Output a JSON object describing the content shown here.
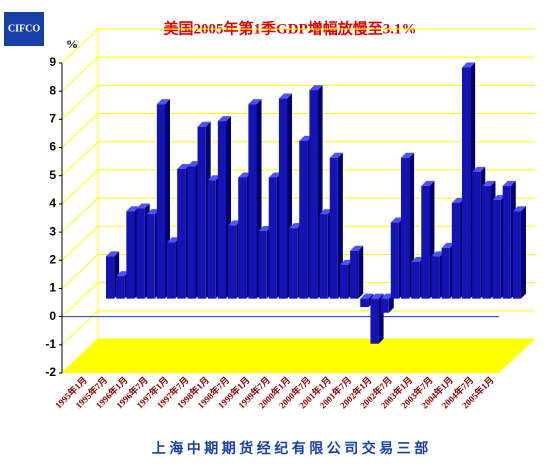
{
  "logo": "CIFCO",
  "footer": "上 海 中 期 期 货 经 纪 有 限 公 司 交 易 三 部",
  "chart_data": {
    "type": "bar3d",
    "title": "美国2005年第1季GDP增幅放慢至3.1%",
    "y_label": "%",
    "categories": [
      "1995年1月",
      null,
      "1995年7月",
      null,
      "1996年1月",
      null,
      "1996年7月",
      null,
      "1997年1月",
      null,
      "1997年7月",
      null,
      "1998年1月",
      null,
      "1998年7月",
      null,
      "1999年1月",
      null,
      "1999年7月",
      null,
      "2000年1月",
      null,
      "2000年7月",
      null,
      "2001年1月",
      null,
      "2001年7月",
      null,
      "2002年1月",
      null,
      "2002年7月",
      null,
      "2003年1月",
      null,
      "2003年7月",
      null,
      "2004年1月",
      null,
      "2004年7月",
      null,
      "2005年1月"
    ],
    "values": [
      1.5,
      0.8,
      3.1,
      3.2,
      3.0,
      6.9,
      2.0,
      4.6,
      4.7,
      6.1,
      4.2,
      6.3,
      2.6,
      4.3,
      6.9,
      2.4,
      4.3,
      7.1,
      2.5,
      5.6,
      7.4,
      3.0,
      5.0,
      1.2,
      1.7,
      -0.3,
      -1.6,
      -0.5,
      2.7,
      5.0,
      1.3,
      4.0,
      1.5,
      1.8,
      3.4,
      8.2,
      4.5,
      4.0,
      3.5,
      4.0,
      3.1
    ],
    "color": "#1414b4",
    "ylim": [
      -2,
      9
    ],
    "yticks": [
      -2,
      -1,
      0,
      1,
      2,
      3,
      4,
      5,
      6,
      7,
      8,
      9
    ],
    "grid": true
  }
}
